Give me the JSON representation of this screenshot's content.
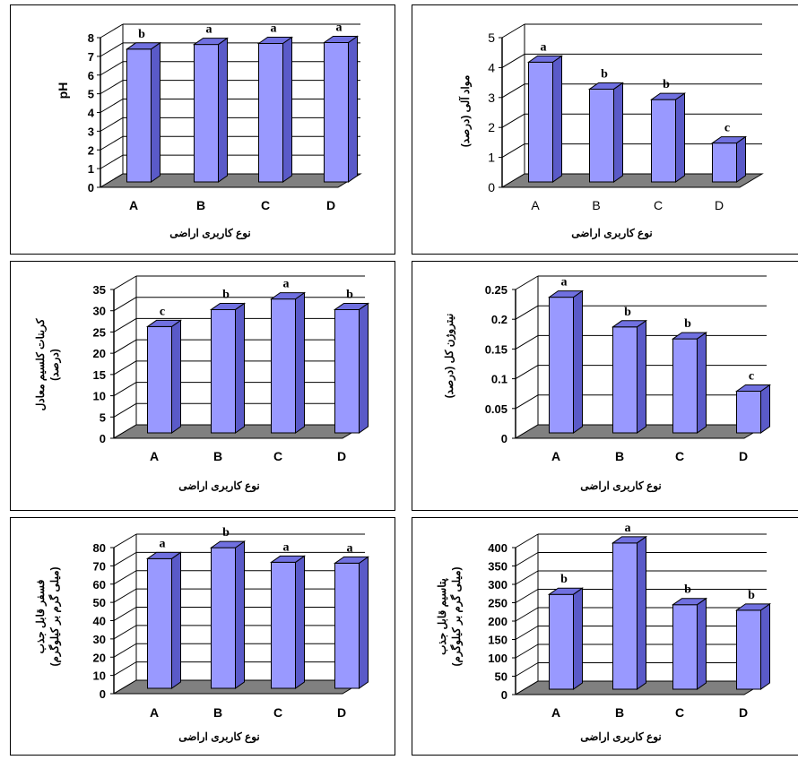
{
  "colors": {
    "bar_front": "#9999ff",
    "bar_side": "#5a5ac8",
    "bar_top": "#7070e0",
    "floor": "#808080",
    "grid": "#000000"
  },
  "chart_data": [
    {
      "type": "bar",
      "categories": [
        "A",
        "B",
        "C",
        "D"
      ],
      "values": [
        7.1,
        7.35,
        7.4,
        7.45
      ],
      "letters": [
        "b",
        "a",
        "a",
        "a"
      ],
      "ylim": [
        0,
        8
      ],
      "yticks": [
        "0",
        "1",
        "2",
        "3",
        "4",
        "5",
        "6",
        "7",
        "8"
      ],
      "ylabel": [
        "pH"
      ],
      "xlabel": "نوع کاربری اراضی",
      "grid": true,
      "bold_ticks": true
    },
    {
      "type": "bar",
      "categories": [
        "A",
        "B",
        "C",
        "D"
      ],
      "values": [
        4.0,
        3.1,
        2.75,
        1.3
      ],
      "letters": [
        "a",
        "b",
        "b",
        "c"
      ],
      "ylim": [
        0,
        5
      ],
      "yticks": [
        "0",
        "1",
        "2",
        "3",
        "4",
        "5"
      ],
      "ylabel": [
        "مواد آلی (درصد)"
      ],
      "xlabel": "نوع کاربری اراضی",
      "grid": true,
      "bold_ticks": false
    },
    {
      "type": "bar",
      "categories": [
        "A",
        "B",
        "C",
        "D"
      ],
      "values": [
        25,
        29,
        31.5,
        29
      ],
      "letters": [
        "c",
        "b",
        "a",
        "b"
      ],
      "ylim": [
        0,
        35
      ],
      "yticks": [
        "0",
        "5",
        "10",
        "15",
        "20",
        "25",
        "30",
        "35"
      ],
      "ylabel": [
        "کربنات کلسیم معادل",
        "(درصد)"
      ],
      "xlabel": "نوع کاربری اراضی",
      "grid": true,
      "bold_ticks": true
    },
    {
      "type": "bar",
      "categories": [
        "A",
        "B",
        "C",
        "D"
      ],
      "values": [
        0.228,
        0.178,
        0.158,
        0.07
      ],
      "letters": [
        "a",
        "b",
        "b",
        "c"
      ],
      "ylim": [
        0,
        0.25
      ],
      "yticks": [
        "0",
        "0.05",
        "0.1",
        "0.15",
        "0.2",
        "0.25"
      ],
      "ylabel": [
        "نیتروژن کل (درصد)"
      ],
      "xlabel": "نوع کاربری اراضی",
      "grid": true,
      "bold_ticks": true
    },
    {
      "type": "bar",
      "categories": [
        "A",
        "B",
        "C",
        "D"
      ],
      "values": [
        71,
        77,
        69,
        68.5
      ],
      "letters": [
        "a",
        "b",
        "a",
        "a"
      ],
      "ylim": [
        0,
        80
      ],
      "yticks": [
        "0",
        "10",
        "20",
        "30",
        "40",
        "50",
        "60",
        "70",
        "80"
      ],
      "ylabel": [
        "فسفر قابل جذب",
        "(میلی گرم بر کیلوگرم)"
      ],
      "xlabel": "نوع کاربری اراضی",
      "grid": true,
      "bold_ticks": true
    },
    {
      "type": "bar",
      "categories": [
        "A",
        "B",
        "C",
        "D"
      ],
      "values": [
        258,
        398,
        230,
        215
      ],
      "letters": [
        "b",
        "a",
        "b",
        "b"
      ],
      "ylim": [
        0,
        400
      ],
      "yticks": [
        "0",
        "50",
        "100",
        "150",
        "200",
        "250",
        "300",
        "350",
        "400"
      ],
      "ylabel": [
        "پتاسیم قابل جذب",
        "(میلی گرم بر کیلوگرم)"
      ],
      "xlabel": "نوع کاربری اراضی",
      "grid": true,
      "bold_ticks": true
    }
  ]
}
